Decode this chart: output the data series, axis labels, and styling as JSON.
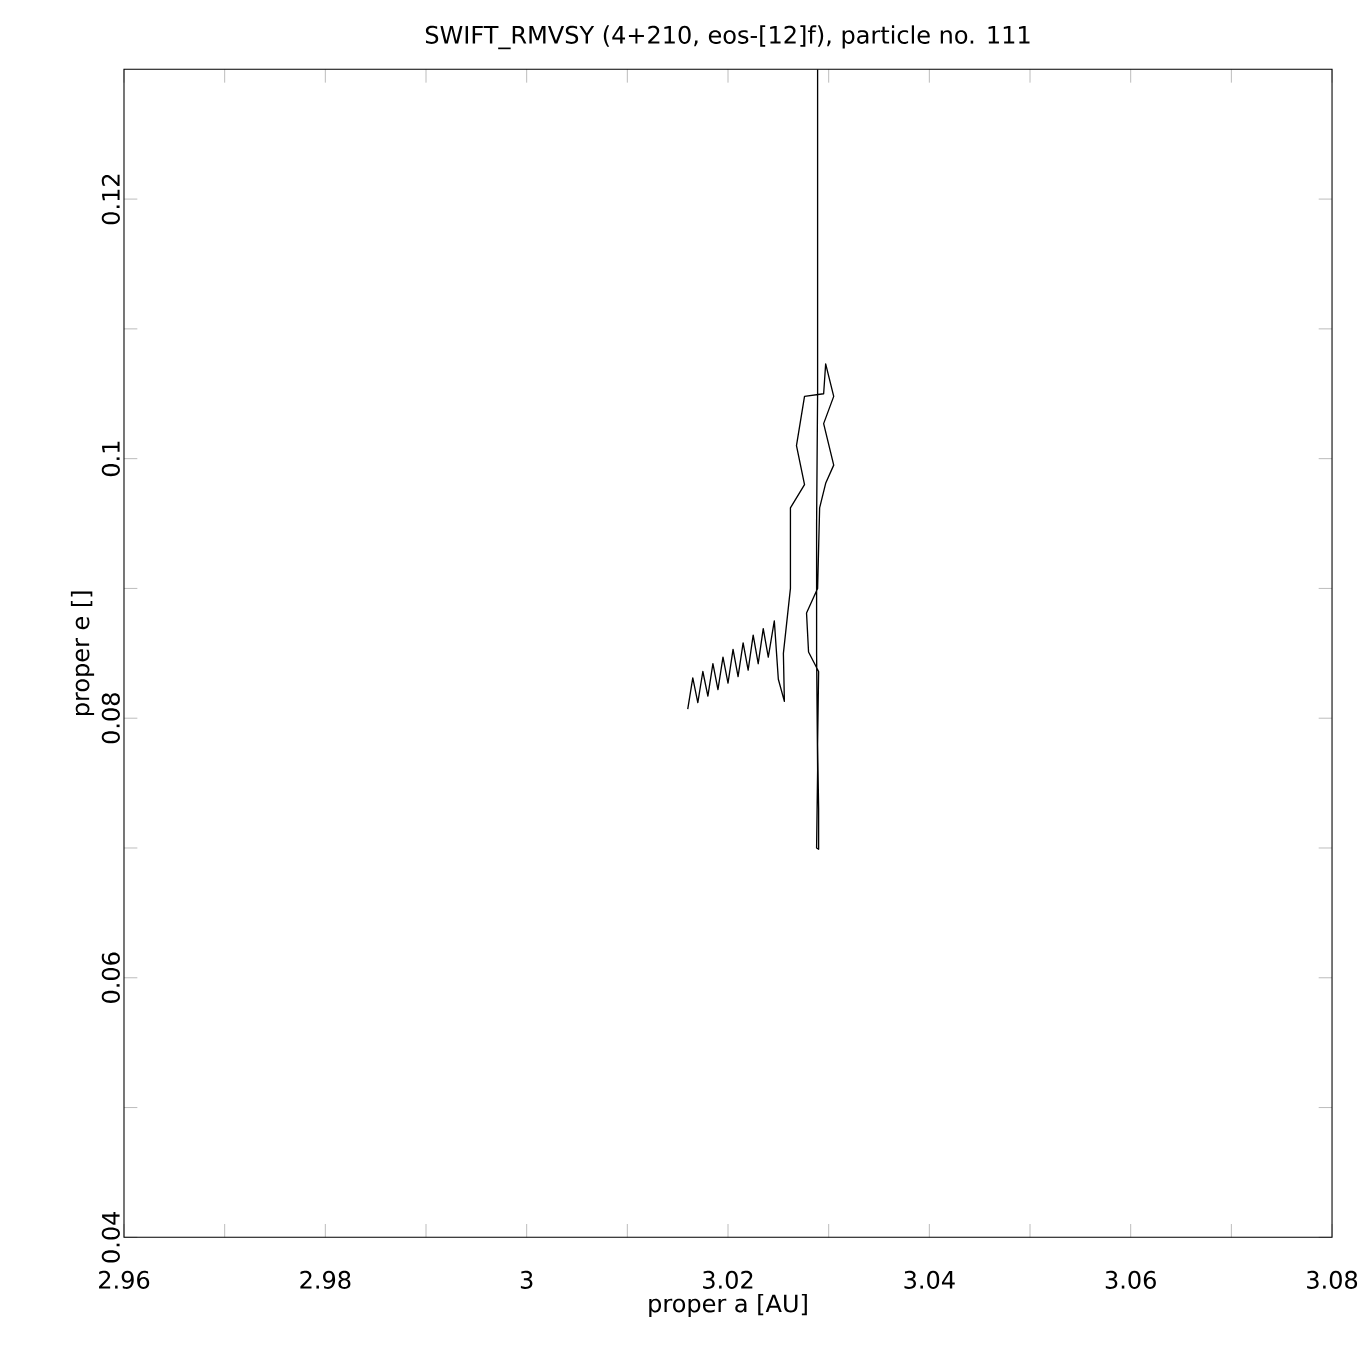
{
  "chart_data": {
    "type": "line",
    "title": "SWIFT_RMVSY (4+210, eos-[12]f), particle no. 111",
    "xlabel": "proper a [AU]",
    "ylabel": "proper e []",
    "xlim": [
      2.96,
      3.08
    ],
    "ylim": [
      0.04,
      0.13
    ],
    "xticks": [
      2.96,
      {
        "value": 2.97,
        "label": null
      },
      2.98,
      {
        "value": 2.99,
        "label": null
      },
      3,
      {
        "value": 3.01,
        "label": null
      },
      3.02,
      {
        "value": 3.03,
        "label": null
      },
      3.04,
      {
        "value": 3.05,
        "label": null
      },
      3.06,
      {
        "value": 3.07,
        "label": null
      },
      3.08
    ],
    "yticks": [
      0.04,
      {
        "value": 0.05,
        "label": null
      },
      0.06,
      {
        "value": 0.07,
        "label": null
      },
      0.08,
      {
        "value": 0.09,
        "label": null
      },
      0.1,
      {
        "value": 0.11,
        "label": null
      },
      0.12
    ],
    "marker": "none",
    "grid": false,
    "series": [
      {
        "color": "#000000",
        "x": [
          3.016,
          3.0165,
          3.017,
          3.0175,
          3.018,
          3.0185,
          3.019,
          3.0195,
          3.02,
          3.0205,
          3.021,
          3.0215,
          3.022,
          3.0225,
          3.023,
          3.0235,
          3.024,
          3.0246,
          3.025,
          3.0256,
          3.0255,
          3.0262,
          3.0262,
          3.0276,
          3.0268,
          3.0276,
          3.0295,
          3.0297,
          3.0305,
          3.0295,
          3.0305,
          3.0297,
          3.0291,
          3.0289,
          3.0278,
          3.028,
          3.029,
          3.0289,
          3.029,
          3.029,
          3.0288,
          3.0289,
          3.0288,
          3.0288,
          3.0289,
          3.0289
        ],
        "values": [
          0.0807,
          0.0831,
          0.0812,
          0.0836,
          0.0817,
          0.0842,
          0.0822,
          0.0847,
          0.0827,
          0.0853,
          0.0832,
          0.0858,
          0.0837,
          0.0864,
          0.0842,
          0.0869,
          0.0847,
          0.0875,
          0.083,
          0.0813,
          0.085,
          0.09,
          0.0962,
          0.098,
          0.101,
          0.1048,
          0.105,
          0.1073,
          0.1048,
          0.1027,
          0.0995,
          0.0981,
          0.0962,
          0.09,
          0.0881,
          0.0851,
          0.0836,
          0.078,
          0.073,
          0.0699,
          0.07,
          0.076,
          0.085,
          0.095,
          0.105,
          0.13
        ]
      }
    ]
  }
}
